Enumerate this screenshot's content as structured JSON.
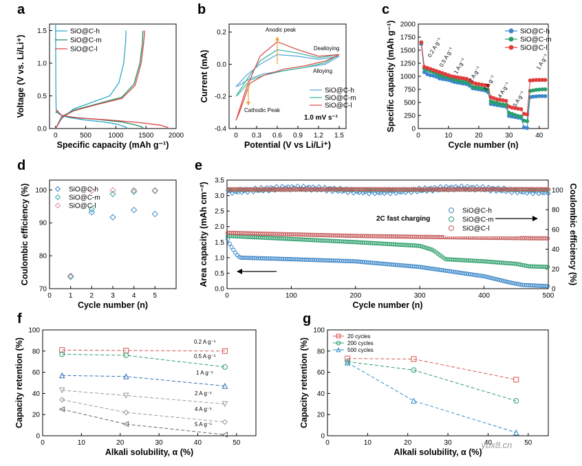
{
  "chart_data": [
    {
      "panel": "a",
      "type": "line",
      "xlabel": "Specific capacity (mAh g⁻¹)",
      "ylabel": "Voltage (V vs. Li/Li⁺)",
      "xlim": [
        -100,
        2000
      ],
      "ylim": [
        0,
        1.6
      ],
      "xticks": [
        0,
        500,
        1000,
        1500,
        2000
      ],
      "yticks": [
        0.0,
        0.5,
        1.0,
        1.5
      ],
      "legend": "top-left",
      "series": [
        {
          "name": "SiO@C-h",
          "color": "#2aa7c9",
          "discharge": [
            [
              0,
              1.6
            ],
            [
              5,
              0.6
            ],
            [
              10,
              0.3
            ],
            [
              20,
              0.25
            ],
            [
              60,
              0.22
            ],
            [
              200,
              0.17
            ],
            [
              500,
              0.13
            ],
            [
              800,
              0.1
            ],
            [
              1000,
              0.07
            ],
            [
              1150,
              0.03
            ],
            [
              1200,
              0
            ]
          ],
          "charge": [
            [
              0,
              0
            ],
            [
              100,
              0.15
            ],
            [
              300,
              0.3
            ],
            [
              600,
              0.4
            ],
            [
              900,
              0.5
            ],
            [
              1050,
              0.7
            ],
            [
              1130,
              1.0
            ],
            [
              1160,
              1.3
            ],
            [
              1170,
              1.5
            ]
          ]
        },
        {
          "name": "SiO@C-m",
          "color": "#1b8c5e",
          "discharge": [
            [
              0,
              0.24
            ],
            [
              40,
              0.26
            ],
            [
              100,
              0.2
            ],
            [
              300,
              0.17
            ],
            [
              700,
              0.14
            ],
            [
              1100,
              0.1
            ],
            [
              1300,
              0.06
            ],
            [
              1420,
              0.03
            ],
            [
              1460,
              0
            ]
          ],
          "charge": [
            [
              0,
              0
            ],
            [
              100,
              0.18
            ],
            [
              300,
              0.28
            ],
            [
              700,
              0.38
            ],
            [
              1100,
              0.48
            ],
            [
              1300,
              0.68
            ],
            [
              1400,
              1.0
            ],
            [
              1440,
              1.3
            ],
            [
              1450,
              1.5
            ]
          ]
        },
        {
          "name": "SiO@C-l",
          "color": "#d94545",
          "discharge": [
            [
              0,
              0.28
            ],
            [
              30,
              0.27
            ],
            [
              100,
              0.2
            ],
            [
              400,
              0.16
            ],
            [
              900,
              0.13
            ],
            [
              1400,
              0.09
            ],
            [
              1750,
              0.05
            ],
            [
              1850,
              0.02
            ],
            [
              1880,
              0
            ]
          ],
          "charge": [
            [
              0,
              0
            ],
            [
              100,
              0.17
            ],
            [
              300,
              0.27
            ],
            [
              700,
              0.37
            ],
            [
              1100,
              0.46
            ],
            [
              1320,
              0.66
            ],
            [
              1420,
              1.0
            ],
            [
              1460,
              1.3
            ],
            [
              1480,
              1.5
            ]
          ]
        }
      ]
    },
    {
      "panel": "b",
      "type": "line",
      "xlabel": "Potential (V vs Li/Li⁺)",
      "ylabel": "Current (mA)",
      "xlim": [
        -0.1,
        1.6
      ],
      "ylim": [
        -0.4,
        0.25
      ],
      "xticks": [
        0.0,
        0.3,
        0.6,
        0.9,
        1.2,
        1.5
      ],
      "yticks": [
        0.2,
        0.0,
        -0.2,
        -0.4
      ],
      "legend": "bottom-right",
      "annotations": [
        "Anodic peak",
        "Dealloying",
        "Alloying",
        "Cathodic Peak",
        "1.0 mV s⁻¹"
      ],
      "series": [
        {
          "name": "SiO@C-h",
          "color": "#5aa9d9",
          "peak_current": 0.06,
          "points": [
            [
              0.0,
              -0.14
            ],
            [
              0.15,
              -0.07
            ],
            [
              0.35,
              0.0
            ],
            [
              0.6,
              0.06
            ],
            [
              0.9,
              0.05
            ],
            [
              1.2,
              0.03
            ],
            [
              1.5,
              0.05
            ],
            [
              1.3,
              0.0
            ],
            [
              1.0,
              -0.02
            ],
            [
              0.7,
              -0.04
            ],
            [
              0.4,
              -0.06
            ],
            [
              0.2,
              -0.09
            ],
            [
              0.05,
              -0.13
            ],
            [
              0.0,
              -0.14
            ]
          ]
        },
        {
          "name": "SiO@C-m",
          "color": "#3fb5a0",
          "peak_current": 0.09,
          "points": [
            [
              0.0,
              -0.2
            ],
            [
              0.15,
              -0.1
            ],
            [
              0.35,
              0.02
            ],
            [
              0.6,
              0.09
            ],
            [
              0.9,
              0.07
            ],
            [
              1.2,
              0.04
            ],
            [
              1.5,
              0.06
            ],
            [
              1.3,
              0.01
            ],
            [
              1.0,
              -0.02
            ],
            [
              0.7,
              -0.04
            ],
            [
              0.4,
              -0.07
            ],
            [
              0.2,
              -0.1
            ],
            [
              0.05,
              -0.18
            ],
            [
              0.0,
              -0.2
            ]
          ]
        },
        {
          "name": "SiO@C-l",
          "color": "#d9534f",
          "peak_current": 0.14,
          "points": [
            [
              0.0,
              -0.35
            ],
            [
              0.15,
              -0.15
            ],
            [
              0.35,
              0.05
            ],
            [
              0.6,
              0.14
            ],
            [
              0.9,
              0.09
            ],
            [
              1.2,
              0.05
            ],
            [
              1.5,
              0.06
            ],
            [
              1.3,
              0.02
            ],
            [
              1.0,
              -0.01
            ],
            [
              0.7,
              -0.03
            ],
            [
              0.4,
              -0.07
            ],
            [
              0.2,
              -0.12
            ],
            [
              0.05,
              -0.3
            ],
            [
              0.0,
              -0.35
            ]
          ]
        }
      ]
    },
    {
      "panel": "c",
      "type": "line",
      "xlabel": "Cycle number (n)",
      "ylabel": "Specific capacity (mAh g⁻¹)",
      "xlim": [
        0,
        43
      ],
      "ylim": [
        0,
        2000
      ],
      "xticks": [
        0,
        10,
        20,
        30,
        40
      ],
      "yticks": [
        0,
        250,
        500,
        750,
        1000,
        1250,
        1500,
        1750,
        2000
      ],
      "legend": "top-right",
      "rate_labels": [
        "0.2 A g⁻¹",
        "0.5 A g⁻¹",
        "1 A g⁻¹",
        "2 A g⁻¹",
        "3 A g⁻¹",
        "4 A g⁻¹",
        "5 A g⁻¹",
        "1 A g⁻¹"
      ],
      "series": [
        {
          "name": "SiO@C-h",
          "color": "#3a86c8",
          "values": [
            1620,
            1080,
            1040,
            1020,
            1010,
            990,
            960,
            950,
            940,
            930,
            910,
            890,
            880,
            870,
            860,
            850,
            820,
            770,
            760,
            750,
            740,
            730,
            700,
            470,
            460,
            450,
            440,
            430,
            420,
            240,
            230,
            220,
            210,
            200,
            20,
            10,
            600,
            610,
            615,
            620,
            620,
            620
          ]
        },
        {
          "name": "SiO@C-m",
          "color": "#2a9d6a",
          "values": [
            1650,
            1150,
            1120,
            1100,
            1080,
            1060,
            1020,
            1000,
            990,
            980,
            960,
            940,
            920,
            910,
            900,
            890,
            860,
            800,
            790,
            780,
            770,
            760,
            740,
            520,
            500,
            490,
            470,
            460,
            450,
            300,
            280,
            260,
            240,
            230,
            150,
            140,
            720,
            730,
            740,
            745,
            750,
            750
          ]
        },
        {
          "name": "SiO@C-l",
          "color": "#e03c3c",
          "values": [
            1650,
            1180,
            1160,
            1140,
            1120,
            1100,
            1080,
            1060,
            1040,
            1020,
            1000,
            990,
            980,
            970,
            960,
            950,
            920,
            880,
            860,
            850,
            840,
            830,
            820,
            600,
            580,
            560,
            550,
            540,
            530,
            420,
            400,
            390,
            380,
            370,
            280,
            270,
            920,
            925,
            930,
            930,
            930,
            930
          ]
        }
      ]
    },
    {
      "panel": "d",
      "type": "scatter",
      "xlabel": "Cycle number (n)",
      "ylabel": "Coulombic efficiency (%)",
      "xlim": [
        0,
        6
      ],
      "ylim": [
        70,
        103
      ],
      "xticks": [
        0,
        1,
        2,
        3,
        4,
        5
      ],
      "yticks": [
        70,
        80,
        90,
        100
      ],
      "legend": "top-left",
      "series": [
        {
          "name": "SiO@C-h",
          "color": "#3a86c8",
          "x": [
            1,
            2,
            3,
            4,
            5
          ],
          "y": [
            73.8,
            93.2,
            91.7,
            93.9,
            92.7
          ]
        },
        {
          "name": "SiO@C-m",
          "color": "#2fa8a8",
          "x": [
            1,
            2,
            3,
            4,
            5
          ],
          "y": [
            73.6,
            94.1,
            98.8,
            99.5,
            99.7
          ]
        },
        {
          "name": "SiO@C-l",
          "color": "#d98a9a",
          "x": [
            1,
            2,
            3,
            4,
            5
          ],
          "y": [
            73.9,
            99.8,
            99.9,
            99.9,
            99.9
          ]
        }
      ]
    },
    {
      "panel": "e",
      "type": "scatter",
      "xlabel": "Cycle number (n)",
      "ylabel": "Area capacity (mAh cm⁻²)",
      "ylabel_right": "Coulombic efficiency (%)",
      "xlim": [
        0,
        500
      ],
      "ylim": [
        0,
        3.5
      ],
      "ylim_right": [
        0,
        110
      ],
      "xticks": [
        0,
        100,
        200,
        300,
        400,
        500
      ],
      "yticks": [
        0.0,
        0.5,
        1.0,
        1.5,
        2.0,
        2.5,
        3.0,
        3.5
      ],
      "yticks_right": [
        0,
        20,
        40,
        60,
        80,
        100
      ],
      "legend": "center-right",
      "annotation": "2C fast charging",
      "capacity": [
        {
          "name": "SiO@C-h",
          "color": "#3a86c8",
          "points": [
            [
              1,
              1.6
            ],
            [
              5,
              1.4
            ],
            [
              10,
              1.25
            ],
            [
              15,
              1.1
            ],
            [
              20,
              1.0
            ],
            [
              100,
              0.95
            ],
            [
              200,
              0.88
            ],
            [
              300,
              0.7
            ],
            [
              350,
              0.55
            ],
            [
              400,
              0.4
            ],
            [
              440,
              0.2
            ],
            [
              460,
              0.12
            ],
            [
              500,
              0.08
            ]
          ]
        },
        {
          "name": "SiO@C-m",
          "color": "#2a9d6a",
          "points": [
            [
              1,
              1.7
            ],
            [
              100,
              1.6
            ],
            [
              200,
              1.5
            ],
            [
              300,
              1.38
            ],
            [
              320,
              1.25
            ],
            [
              340,
              0.95
            ],
            [
              400,
              0.88
            ],
            [
              450,
              0.8
            ],
            [
              470,
              0.72
            ],
            [
              500,
              0.7
            ]
          ]
        },
        {
          "name": "SiO@C-l",
          "color": "#c65a5a",
          "points": [
            [
              1,
              1.8
            ],
            [
              100,
              1.75
            ],
            [
              200,
              1.7
            ],
            [
              300,
              1.67
            ],
            [
              400,
              1.64
            ],
            [
              500,
              1.62
            ]
          ]
        }
      ],
      "efficiency": [
        {
          "name": "SiO@C-h",
          "color": "#3a86c8",
          "mean": 100,
          "spread": 4
        },
        {
          "name": "SiO@C-m",
          "color": "#2a9d6a",
          "mean": 100.3,
          "spread": 0.3
        },
        {
          "name": "SiO@C-l",
          "color": "#c65a5a",
          "mean": 100.6,
          "spread": 0.2
        }
      ]
    },
    {
      "panel": "f",
      "type": "line",
      "xlabel": "Alkali solubility, α (%)",
      "ylabel": "Capacity retention (%)",
      "xlim": [
        0,
        55
      ],
      "ylim": [
        0,
        100
      ],
      "xticks": [
        0,
        10,
        20,
        30,
        40,
        50
      ],
      "yticks": [
        0,
        20,
        40,
        60,
        80,
        100
      ],
      "x": [
        5,
        21.5,
        47
      ],
      "series": [
        {
          "name": "0.2 A g⁻¹",
          "color": "#d9534f",
          "marker": "square",
          "values": [
            81,
            80.5,
            80
          ]
        },
        {
          "name": "0.5 A g⁻¹",
          "color": "#2a9d6a",
          "marker": "circle",
          "values": [
            77,
            76,
            65
          ]
        },
        {
          "name": "1 A g⁻¹",
          "color": "#2f6fb5",
          "marker": "triangle",
          "values": [
            57,
            56,
            47
          ]
        },
        {
          "name": "2 A g⁻¹",
          "color": "#999999",
          "marker": "triangle-down",
          "values": [
            43,
            38,
            30
          ]
        },
        {
          "name": "4 A g⁻¹",
          "color": "#999999",
          "marker": "diamond",
          "values": [
            34,
            22,
            13
          ]
        },
        {
          "name": "5 A g⁻¹",
          "color": "#666666",
          "marker": "triangle-left",
          "values": [
            25,
            11,
            1
          ]
        }
      ]
    },
    {
      "panel": "g",
      "type": "line",
      "xlabel": "Alkali solubility, α (%)",
      "ylabel": "Capacity retention (%)",
      "xlim": [
        0,
        55
      ],
      "ylim": [
        0,
        100
      ],
      "xticks": [
        0,
        10,
        20,
        30,
        40,
        50
      ],
      "yticks": [
        0,
        20,
        40,
        60,
        80,
        100
      ],
      "legend": "top-left",
      "x": [
        5,
        21.5,
        47
      ],
      "series": [
        {
          "name": "20 cycles",
          "color": "#d9534f",
          "marker": "square",
          "values": [
            73,
            72.5,
            53
          ]
        },
        {
          "name": "200 cycles",
          "color": "#2a9d6a",
          "marker": "circle",
          "values": [
            70,
            62,
            33
          ]
        },
        {
          "name": "500 cycles",
          "color": "#2f8fc5",
          "marker": "triangle",
          "values": [
            69,
            33,
            3
          ]
        }
      ]
    }
  ],
  "watermark": "ybx8.cn"
}
